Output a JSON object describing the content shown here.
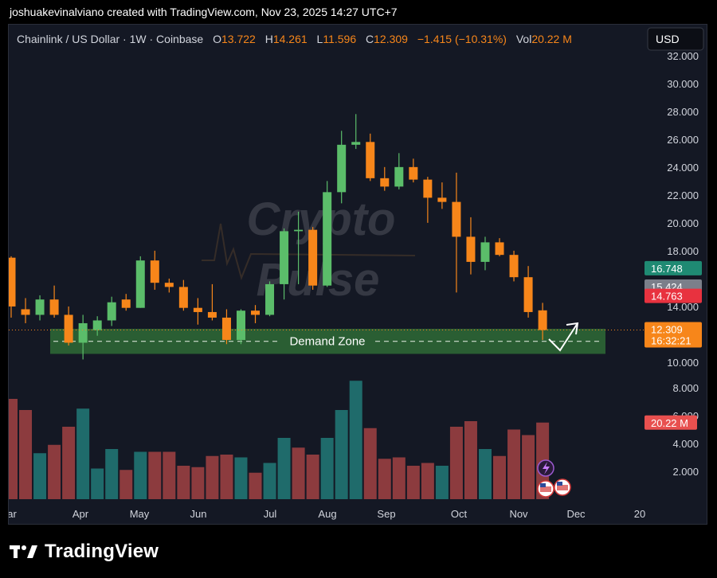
{
  "header": {
    "credit": "joshuakevinalviano created with TradingView.com, Nov 23, 2025 14:27 UTC+7"
  },
  "footer": {
    "brand": "TradingView"
  },
  "legend": {
    "symbol": "Chainlink / US Dollar · 1W · Coinbase",
    "o_label": "O",
    "o_value": "13.722",
    "h_label": "H",
    "h_value": "14.261",
    "l_label": "L",
    "l_value": "11.596",
    "c_label": "C",
    "c_value": "12.309",
    "change": "−1.415 (−10.31%)",
    "vol_label": "Vol",
    "vol_value": "20.22 M"
  },
  "currency_button": "USD",
  "watermark": {
    "line1": "Crypto",
    "line2": "Pulse"
  },
  "zone_label": "Demand Zone",
  "colors": {
    "up": "#5bbd6a",
    "down": "#f7861a",
    "vol_up": "#1f6b6b",
    "vol_down": "#8c3b3e",
    "zone": "#2e6b36",
    "background": "#141824"
  },
  "price_badges": [
    {
      "text": "16.748",
      "color": "#1f8a73",
      "value": 16.748
    },
    {
      "text": "15.424",
      "color": "#7b7f8a",
      "value": 15.424
    },
    {
      "text": "14.763",
      "color": "#e8323f",
      "value": 14.763
    },
    {
      "text": "12.309",
      "text2": "16:32:21",
      "color": "#f7861a",
      "value": 12.309
    }
  ],
  "volume_badge": "20.22 M",
  "chart_data": {
    "type": "candlestick",
    "title": "Chainlink / US Dollar · 1W · Coinbase",
    "price_axis_ticks": [
      "32.000",
      "30.000",
      "28.000",
      "26.000",
      "24.000",
      "22.000",
      "20.000",
      "18.000",
      "14.000",
      "10.000"
    ],
    "volume_axis_ticks": [
      "8.000",
      "6.000",
      "4.000",
      "2.000"
    ],
    "time_axis_labels": [
      "ar",
      "Apr",
      "May",
      "Jun",
      "Jul",
      "Aug",
      "Sep",
      "Oct",
      "Nov",
      "Dec",
      "20"
    ],
    "price_range": [
      8.8,
      33.3
    ],
    "demand_zone": [
      10.6,
      12.4
    ],
    "candles": [
      {
        "o": 17.5,
        "h": 17.6,
        "l": 13.2,
        "c": 14.0
      },
      {
        "o": 13.8,
        "h": 14.6,
        "l": 12.8,
        "c": 13.4
      },
      {
        "o": 13.4,
        "h": 14.8,
        "l": 13.0,
        "c": 14.5
      },
      {
        "o": 14.5,
        "h": 15.5,
        "l": 13.2,
        "c": 13.4
      },
      {
        "o": 13.4,
        "h": 14.0,
        "l": 11.2,
        "c": 11.4
      },
      {
        "o": 11.4,
        "h": 13.4,
        "l": 10.2,
        "c": 12.8
      },
      {
        "o": 12.3,
        "h": 13.3,
        "l": 11.9,
        "c": 13.0
      },
      {
        "o": 13.0,
        "h": 14.7,
        "l": 12.6,
        "c": 14.3
      },
      {
        "o": 14.5,
        "h": 14.9,
        "l": 13.7,
        "c": 13.9
      },
      {
        "o": 13.9,
        "h": 17.6,
        "l": 13.9,
        "c": 17.3
      },
      {
        "o": 17.3,
        "h": 18.0,
        "l": 15.2,
        "c": 15.7
      },
      {
        "o": 15.7,
        "h": 16.0,
        "l": 15.0,
        "c": 15.4
      },
      {
        "o": 15.4,
        "h": 15.9,
        "l": 13.7,
        "c": 13.9
      },
      {
        "o": 13.9,
        "h": 14.6,
        "l": 12.7,
        "c": 13.6
      },
      {
        "o": 13.6,
        "h": 15.6,
        "l": 13.0,
        "c": 13.2
      },
      {
        "o": 13.2,
        "h": 13.8,
        "l": 11.3,
        "c": 11.6
      },
      {
        "o": 11.6,
        "h": 13.8,
        "l": 11.3,
        "c": 13.7
      },
      {
        "o": 13.7,
        "h": 14.1,
        "l": 12.8,
        "c": 13.4
      },
      {
        "o": 13.4,
        "h": 15.8,
        "l": 13.3,
        "c": 15.6
      },
      {
        "o": 15.6,
        "h": 19.6,
        "l": 14.5,
        "c": 19.4
      },
      {
        "o": 19.4,
        "h": 20.8,
        "l": 15.6,
        "c": 19.5
      },
      {
        "o": 19.5,
        "h": 19.7,
        "l": 15.2,
        "c": 15.5
      },
      {
        "o": 15.5,
        "h": 23.0,
        "l": 15.4,
        "c": 22.2
      },
      {
        "o": 22.2,
        "h": 26.6,
        "l": 21.4,
        "c": 25.6
      },
      {
        "o": 25.6,
        "h": 27.8,
        "l": 25.3,
        "c": 25.8
      },
      {
        "o": 25.8,
        "h": 26.4,
        "l": 23.0,
        "c": 23.2
      },
      {
        "o": 23.2,
        "h": 24.0,
        "l": 22.3,
        "c": 22.6
      },
      {
        "o": 22.6,
        "h": 25.0,
        "l": 22.4,
        "c": 24.0
      },
      {
        "o": 24.0,
        "h": 24.6,
        "l": 22.9,
        "c": 23.1
      },
      {
        "o": 23.1,
        "h": 23.3,
        "l": 20.0,
        "c": 21.8
      },
      {
        "o": 21.8,
        "h": 22.9,
        "l": 21.0,
        "c": 21.5
      },
      {
        "o": 21.5,
        "h": 23.6,
        "l": 15.0,
        "c": 19.0
      },
      {
        "o": 19.0,
        "h": 20.4,
        "l": 16.3,
        "c": 17.2
      },
      {
        "o": 17.2,
        "h": 19.0,
        "l": 16.6,
        "c": 18.6
      },
      {
        "o": 18.6,
        "h": 18.9,
        "l": 17.6,
        "c": 17.7
      },
      {
        "o": 17.7,
        "h": 18.0,
        "l": 15.8,
        "c": 16.1
      },
      {
        "o": 16.1,
        "h": 16.9,
        "l": 13.2,
        "c": 13.6
      },
      {
        "o": 13.722,
        "h": 14.261,
        "l": 11.596,
        "c": 12.309
      }
    ],
    "volumes": [
      {
        "v": 7.2,
        "up": false
      },
      {
        "v": 6.4,
        "up": false
      },
      {
        "v": 3.3,
        "up": true
      },
      {
        "v": 3.9,
        "up": false
      },
      {
        "v": 5.2,
        "up": false
      },
      {
        "v": 6.5,
        "up": true
      },
      {
        "v": 2.2,
        "up": true
      },
      {
        "v": 3.6,
        "up": true
      },
      {
        "v": 2.1,
        "up": false
      },
      {
        "v": 3.4,
        "up": true
      },
      {
        "v": 3.4,
        "up": false
      },
      {
        "v": 3.4,
        "up": false
      },
      {
        "v": 2.4,
        "up": false
      },
      {
        "v": 2.3,
        "up": false
      },
      {
        "v": 3.1,
        "up": false
      },
      {
        "v": 3.2,
        "up": false
      },
      {
        "v": 3.0,
        "up": true
      },
      {
        "v": 1.9,
        "up": false
      },
      {
        "v": 2.6,
        "up": true
      },
      {
        "v": 4.4,
        "up": true
      },
      {
        "v": 3.7,
        "up": false
      },
      {
        "v": 3.2,
        "up": false
      },
      {
        "v": 4.4,
        "up": true
      },
      {
        "v": 6.4,
        "up": true
      },
      {
        "v": 8.5,
        "up": true
      },
      {
        "v": 5.1,
        "up": false
      },
      {
        "v": 2.9,
        "up": false
      },
      {
        "v": 3.0,
        "up": false
      },
      {
        "v": 2.4,
        "up": false
      },
      {
        "v": 2.6,
        "up": false
      },
      {
        "v": 2.4,
        "up": true
      },
      {
        "v": 5.2,
        "up": false
      },
      {
        "v": 5.6,
        "up": false
      },
      {
        "v": 3.6,
        "up": true
      },
      {
        "v": 3.1,
        "up": false
      },
      {
        "v": 5.0,
        "up": false
      },
      {
        "v": 4.6,
        "up": false
      },
      {
        "v": 5.5,
        "up": false
      }
    ]
  }
}
